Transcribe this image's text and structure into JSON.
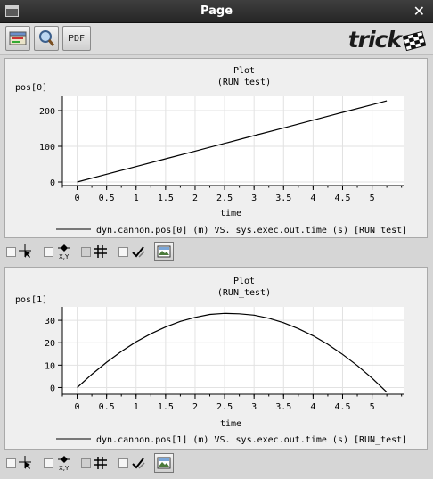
{
  "window": {
    "title": "Page"
  },
  "toolbar": {
    "pdf_label": "PDF",
    "logo_text": "trick"
  },
  "plots": [
    {
      "title": "Plot",
      "subtitle": "(RUN_test)",
      "ylabel": "pos[0]",
      "xlabel": "time",
      "legend": "dyn.cannon.pos[0] (m) VS. sys.exec.out.time (s) [RUN_test]"
    },
    {
      "title": "Plot",
      "subtitle": "(RUN_test)",
      "ylabel": "pos[1]",
      "xlabel": "time",
      "legend": "dyn.cannon.pos[1] (m) VS. sys.exec.out.time (s) [RUN_test]"
    }
  ],
  "chart_data": [
    {
      "type": "line",
      "title": "Plot",
      "subtitle": "(RUN_test)",
      "xlabel": "time",
      "ylabel": "pos[0]",
      "xlim": [
        -0.25,
        5.55
      ],
      "ylim": [
        -10,
        240
      ],
      "xticks": [
        "0",
        "0.5",
        "1",
        "1.5",
        "2",
        "2.5",
        "3",
        "3.5",
        "4",
        "4.5",
        "5"
      ],
      "yticks": [
        "0",
        "100",
        "200"
      ],
      "grid": true,
      "legend_position": "bottom",
      "series": [
        {
          "name": "dyn.cannon.pos[0] (m) VS. sys.exec.out.time (s) [RUN_test]",
          "x": [
            0,
            0.5,
            1,
            1.5,
            2,
            2.5,
            3,
            3.5,
            4,
            4.5,
            5,
            5.25
          ],
          "y": [
            0,
            21.7,
            43.3,
            65,
            86.6,
            108.3,
            129.9,
            151.6,
            173.2,
            194.9,
            216.5,
            227.3
          ]
        }
      ]
    },
    {
      "type": "line",
      "title": "Plot",
      "subtitle": "(RUN_test)",
      "xlabel": "time",
      "ylabel": "pos[1]",
      "xlim": [
        -0.25,
        5.55
      ],
      "ylim": [
        -3,
        36
      ],
      "xticks": [
        "0",
        "0.5",
        "1",
        "1.5",
        "2",
        "2.5",
        "3",
        "3.5",
        "4",
        "4.5",
        "5"
      ],
      "yticks": [
        "0",
        "10",
        "20",
        "30"
      ],
      "grid": true,
      "legend_position": "bottom",
      "series": [
        {
          "name": "dyn.cannon.pos[1] (m) VS. sys.exec.out.time (s) [RUN_test]",
          "x": [
            0,
            0.25,
            0.5,
            0.75,
            1,
            1.25,
            1.5,
            1.75,
            2,
            2.25,
            2.5,
            2.75,
            3,
            3.25,
            3.5,
            3.75,
            4,
            4.25,
            4.5,
            4.75,
            5,
            5.25
          ],
          "y": [
            0,
            5.9,
            11.3,
            16.1,
            20.4,
            24.0,
            27.0,
            29.5,
            31.3,
            32.6,
            33.1,
            32.9,
            32.3,
            30.9,
            28.9,
            26.3,
            23.1,
            19.3,
            14.8,
            9.8,
            4.2,
            -2.1
          ]
        }
      ]
    }
  ]
}
